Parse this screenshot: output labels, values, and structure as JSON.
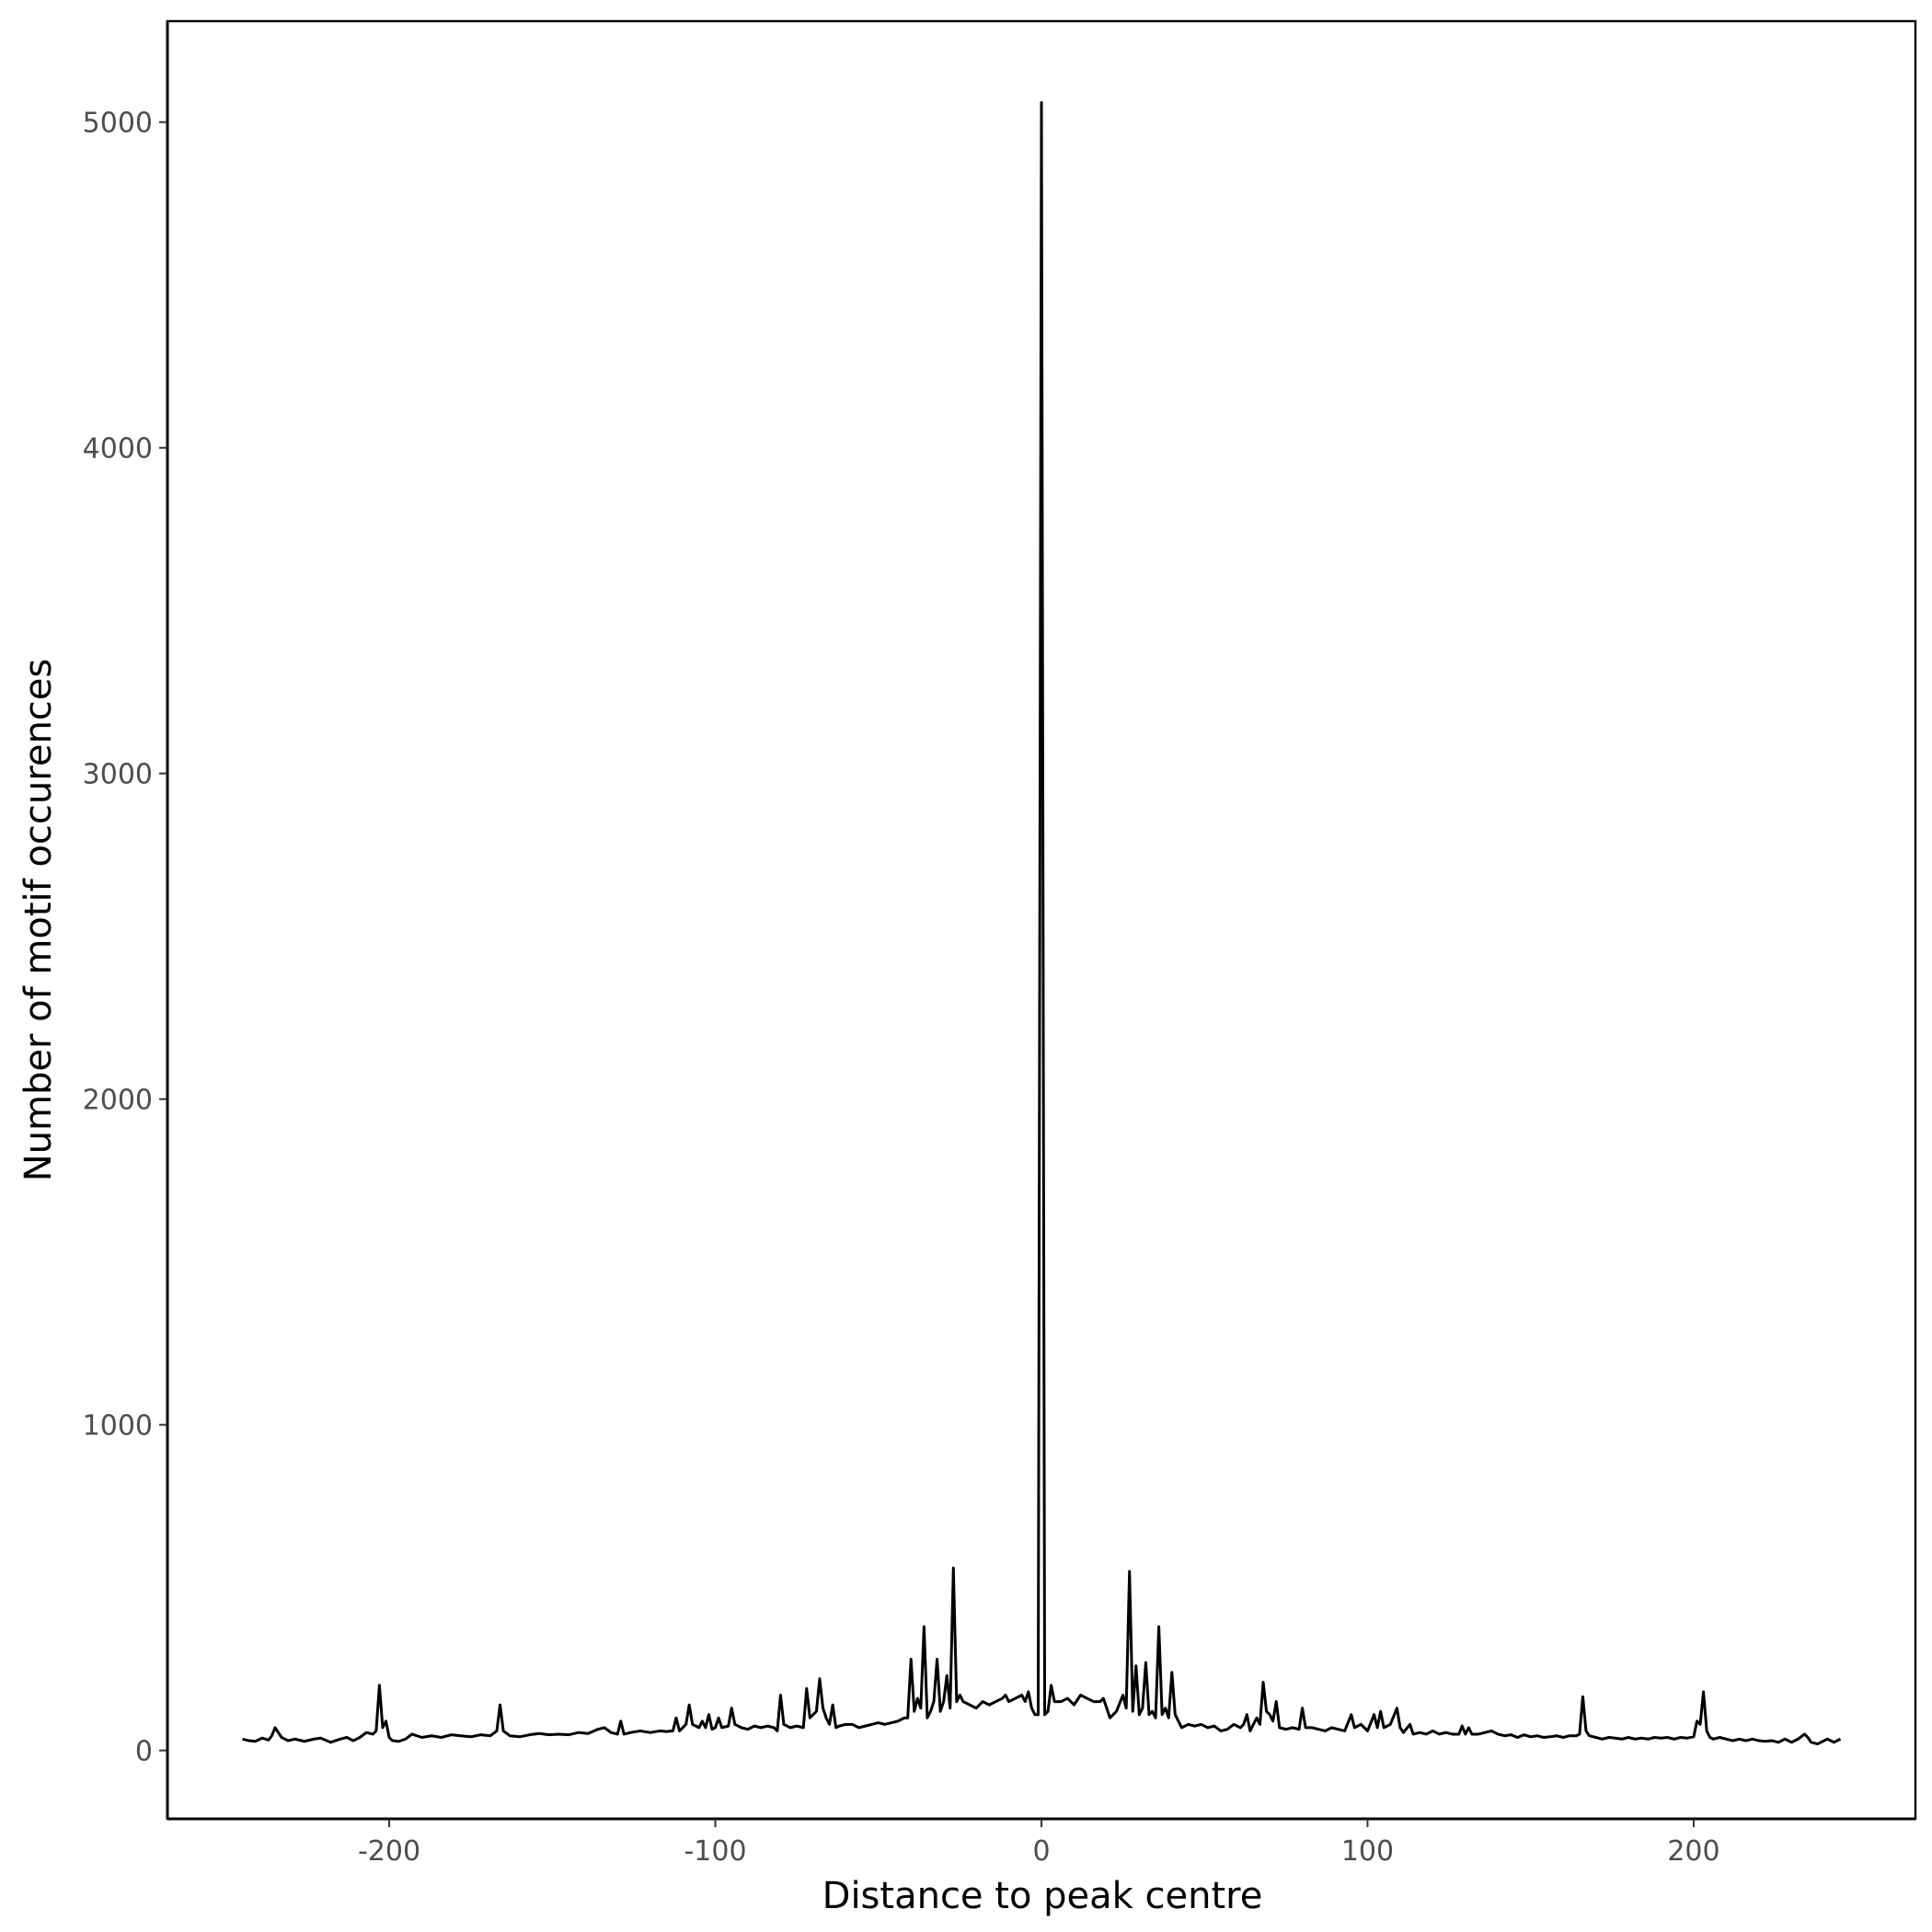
{
  "chart_data": {
    "type": "line",
    "title": "",
    "xlabel": "Distance to peak centre",
    "ylabel": "Number of motif occurences",
    "xlim": [
      -268,
      268
    ],
    "ylim": [
      -210,
      5310
    ],
    "x_ticks": [
      -200,
      -100,
      0,
      100,
      200
    ],
    "x_tick_labels": [
      "-200",
      "-100",
      "0",
      "100",
      "200"
    ],
    "y_ticks": [
      0,
      1000,
      2000,
      3000,
      4000,
      5000
    ],
    "y_tick_labels": [
      "0",
      "1000",
      "2000",
      "3000",
      "4000",
      "5000"
    ],
    "grid": false,
    "line_color": "#000000",
    "series": [
      {
        "points": [
          [
            -245,
            35
          ],
          [
            -243,
            30
          ],
          [
            -241,
            28
          ],
          [
            -239,
            38
          ],
          [
            -237,
            32
          ],
          [
            -236,
            45
          ],
          [
            -235,
            70
          ],
          [
            -233,
            40
          ],
          [
            -231,
            30
          ],
          [
            -229,
            35
          ],
          [
            -226,
            28
          ],
          [
            -223,
            35
          ],
          [
            -221,
            38
          ],
          [
            -218,
            25
          ],
          [
            -215,
            35
          ],
          [
            -213,
            40
          ],
          [
            -211,
            30
          ],
          [
            -209,
            40
          ],
          [
            -207,
            55
          ],
          [
            -205,
            50
          ],
          [
            -204,
            60
          ],
          [
            -203,
            200
          ],
          [
            -202,
            70
          ],
          [
            -201,
            90
          ],
          [
            -200,
            40
          ],
          [
            -199,
            30
          ],
          [
            -197,
            28
          ],
          [
            -195,
            35
          ],
          [
            -193,
            50
          ],
          [
            -190,
            40
          ],
          [
            -187,
            45
          ],
          [
            -184,
            40
          ],
          [
            -181,
            48
          ],
          [
            -178,
            45
          ],
          [
            -175,
            42
          ],
          [
            -172,
            48
          ],
          [
            -169,
            45
          ],
          [
            -167,
            60
          ],
          [
            -166,
            140
          ],
          [
            -165,
            60
          ],
          [
            -163,
            45
          ],
          [
            -160,
            42
          ],
          [
            -157,
            48
          ],
          [
            -154,
            52
          ],
          [
            -151,
            48
          ],
          [
            -148,
            50
          ],
          [
            -145,
            48
          ],
          [
            -142,
            55
          ],
          [
            -139,
            52
          ],
          [
            -136,
            65
          ],
          [
            -134,
            70
          ],
          [
            -132,
            55
          ],
          [
            -130,
            50
          ],
          [
            -129,
            90
          ],
          [
            -128,
            50
          ],
          [
            -126,
            55
          ],
          [
            -123,
            60
          ],
          [
            -120,
            55
          ],
          [
            -117,
            60
          ],
          [
            -115,
            58
          ],
          [
            -113,
            60
          ],
          [
            -112,
            100
          ],
          [
            -111,
            60
          ],
          [
            -110,
            70
          ],
          [
            -109,
            80
          ],
          [
            -108,
            140
          ],
          [
            -107,
            80
          ],
          [
            -105,
            70
          ],
          [
            -104,
            90
          ],
          [
            -103,
            70
          ],
          [
            -102,
            110
          ],
          [
            -101,
            65
          ],
          [
            -100,
            70
          ],
          [
            -99,
            100
          ],
          [
            -98,
            70
          ],
          [
            -96,
            75
          ],
          [
            -95,
            130
          ],
          [
            -94,
            80
          ],
          [
            -92,
            70
          ],
          [
            -90,
            65
          ],
          [
            -88,
            75
          ],
          [
            -86,
            70
          ],
          [
            -84,
            75
          ],
          [
            -82,
            70
          ],
          [
            -81,
            60
          ],
          [
            -80,
            170
          ],
          [
            -79,
            80
          ],
          [
            -77,
            70
          ],
          [
            -75,
            75
          ],
          [
            -73,
            70
          ],
          [
            -72,
            190
          ],
          [
            -71,
            100
          ],
          [
            -69,
            120
          ],
          [
            -68,
            220
          ],
          [
            -67,
            130
          ],
          [
            -66,
            100
          ],
          [
            -65,
            80
          ],
          [
            -64,
            140
          ],
          [
            -63,
            70
          ],
          [
            -62,
            75
          ],
          [
            -60,
            80
          ],
          [
            -58,
            80
          ],
          [
            -56,
            70
          ],
          [
            -54,
            75
          ],
          [
            -52,
            80
          ],
          [
            -50,
            85
          ],
          [
            -48,
            80
          ],
          [
            -46,
            85
          ],
          [
            -44,
            90
          ],
          [
            -42,
            100
          ],
          [
            -41,
            100
          ],
          [
            -40,
            280
          ],
          [
            -39,
            120
          ],
          [
            -38,
            160
          ],
          [
            -37,
            130
          ],
          [
            -36,
            380
          ],
          [
            -35,
            100
          ],
          [
            -34,
            120
          ],
          [
            -33,
            150
          ],
          [
            -32,
            280
          ],
          [
            -31,
            120
          ],
          [
            -30,
            150
          ],
          [
            -29,
            230
          ],
          [
            -28,
            130
          ],
          [
            -27,
            560
          ],
          [
            -26,
            150
          ],
          [
            -25,
            170
          ],
          [
            -24,
            150
          ],
          [
            -22,
            140
          ],
          [
            -20,
            130
          ],
          [
            -18,
            150
          ],
          [
            -16,
            140
          ],
          [
            -14,
            150
          ],
          [
            -12,
            160
          ],
          [
            -11,
            170
          ],
          [
            -10,
            150
          ],
          [
            -8,
            160
          ],
          [
            -6,
            170
          ],
          [
            -5,
            150
          ],
          [
            -4,
            180
          ],
          [
            -3,
            130
          ],
          [
            -2,
            110
          ],
          [
            -1,
            110
          ],
          [
            0,
            5060
          ],
          [
            1,
            110
          ],
          [
            2,
            120
          ],
          [
            3,
            200
          ],
          [
            4,
            150
          ],
          [
            6,
            150
          ],
          [
            8,
            160
          ],
          [
            10,
            140
          ],
          [
            12,
            170
          ],
          [
            14,
            160
          ],
          [
            16,
            150
          ],
          [
            18,
            150
          ],
          [
            19,
            160
          ],
          [
            20,
            130
          ],
          [
            21,
            100
          ],
          [
            23,
            120
          ],
          [
            25,
            170
          ],
          [
            26,
            130
          ],
          [
            27,
            550
          ],
          [
            28,
            120
          ],
          [
            29,
            260
          ],
          [
            30,
            110
          ],
          [
            31,
            130
          ],
          [
            32,
            270
          ],
          [
            33,
            110
          ],
          [
            34,
            120
          ],
          [
            35,
            100
          ],
          [
            36,
            380
          ],
          [
            37,
            110
          ],
          [
            38,
            130
          ],
          [
            39,
            100
          ],
          [
            40,
            240
          ],
          [
            41,
            110
          ],
          [
            42,
            90
          ],
          [
            43,
            70
          ],
          [
            45,
            80
          ],
          [
            47,
            75
          ],
          [
            49,
            80
          ],
          [
            51,
            70
          ],
          [
            53,
            75
          ],
          [
            55,
            60
          ],
          [
            57,
            65
          ],
          [
            59,
            80
          ],
          [
            61,
            70
          ],
          [
            62,
            80
          ],
          [
            63,
            110
          ],
          [
            64,
            60
          ],
          [
            66,
            100
          ],
          [
            67,
            80
          ],
          [
            68,
            210
          ],
          [
            69,
            120
          ],
          [
            70,
            110
          ],
          [
            71,
            90
          ],
          [
            72,
            150
          ],
          [
            73,
            70
          ],
          [
            75,
            65
          ],
          [
            77,
            70
          ],
          [
            79,
            65
          ],
          [
            80,
            130
          ],
          [
            81,
            70
          ],
          [
            83,
            70
          ],
          [
            85,
            65
          ],
          [
            87,
            60
          ],
          [
            89,
            70
          ],
          [
            91,
            65
          ],
          [
            93,
            60
          ],
          [
            95,
            110
          ],
          [
            96,
            70
          ],
          [
            98,
            80
          ],
          [
            100,
            60
          ],
          [
            102,
            110
          ],
          [
            103,
            70
          ],
          [
            104,
            120
          ],
          [
            105,
            70
          ],
          [
            107,
            80
          ],
          [
            109,
            130
          ],
          [
            110,
            70
          ],
          [
            111,
            55
          ],
          [
            113,
            80
          ],
          [
            114,
            50
          ],
          [
            116,
            55
          ],
          [
            118,
            50
          ],
          [
            120,
            60
          ],
          [
            122,
            50
          ],
          [
            124,
            55
          ],
          [
            126,
            50
          ],
          [
            128,
            50
          ],
          [
            129,
            75
          ],
          [
            130,
            50
          ],
          [
            131,
            70
          ],
          [
            132,
            50
          ],
          [
            134,
            50
          ],
          [
            136,
            55
          ],
          [
            138,
            60
          ],
          [
            140,
            50
          ],
          [
            142,
            45
          ],
          [
            144,
            48
          ],
          [
            146,
            40
          ],
          [
            148,
            48
          ],
          [
            150,
            42
          ],
          [
            152,
            45
          ],
          [
            154,
            40
          ],
          [
            156,
            42
          ],
          [
            158,
            45
          ],
          [
            160,
            40
          ],
          [
            162,
            45
          ],
          [
            164,
            45
          ],
          [
            165,
            50
          ],
          [
            166,
            165
          ],
          [
            167,
            60
          ],
          [
            168,
            45
          ],
          [
            170,
            40
          ],
          [
            172,
            35
          ],
          [
            174,
            40
          ],
          [
            176,
            38
          ],
          [
            178,
            35
          ],
          [
            180,
            40
          ],
          [
            182,
            35
          ],
          [
            184,
            38
          ],
          [
            186,
            35
          ],
          [
            188,
            40
          ],
          [
            190,
            38
          ],
          [
            192,
            40
          ],
          [
            194,
            35
          ],
          [
            196,
            40
          ],
          [
            198,
            38
          ],
          [
            200,
            42
          ],
          [
            201,
            90
          ],
          [
            202,
            80
          ],
          [
            203,
            180
          ],
          [
            204,
            60
          ],
          [
            205,
            40
          ],
          [
            206,
            35
          ],
          [
            208,
            40
          ],
          [
            210,
            35
          ],
          [
            212,
            30
          ],
          [
            214,
            35
          ],
          [
            216,
            30
          ],
          [
            218,
            35
          ],
          [
            220,
            30
          ],
          [
            222,
            28
          ],
          [
            224,
            30
          ],
          [
            226,
            25
          ],
          [
            228,
            35
          ],
          [
            230,
            25
          ],
          [
            232,
            35
          ],
          [
            234,
            50
          ],
          [
            235,
            40
          ],
          [
            236,
            25
          ],
          [
            238,
            20
          ],
          [
            240,
            30
          ],
          [
            241,
            35
          ],
          [
            243,
            25
          ],
          [
            245,
            35
          ]
        ]
      }
    ]
  }
}
